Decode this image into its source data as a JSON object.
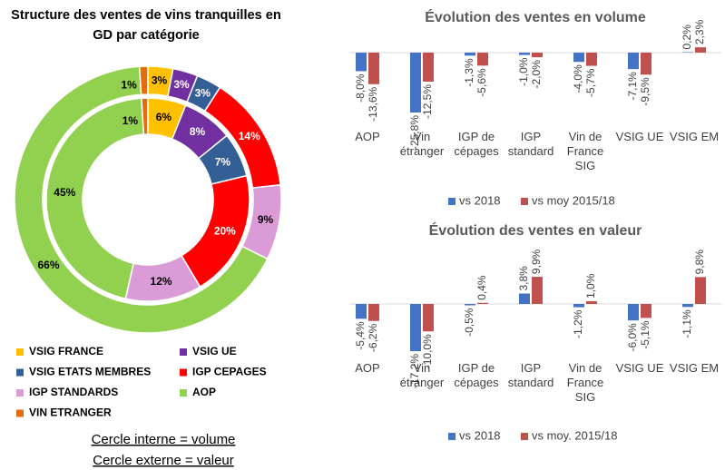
{
  "chart_data": [
    {
      "type": "donut",
      "title": "Structure des ventes de vins tranquilles en GD par catégorie",
      "categories": [
        "VSIG FRANCE",
        "VSIG UE",
        "VSIG ETATS MEMBRES",
        "IGP CEPAGES",
        "IGP STANDARDS",
        "AOP",
        "VIN ETRANGER"
      ],
      "colors": [
        "#ffc000",
        "#7030a0",
        "#335e96",
        "#ff0000",
        "#da9bd6",
        "#92d050",
        "#e46c0a"
      ],
      "rings": [
        {
          "values": [
            6,
            8,
            7,
            20,
            12,
            45,
            1
          ],
          "value_labels": [
            "6%",
            "8%",
            "7%",
            "20%",
            "12%",
            "45%",
            "1%"
          ]
        },
        {
          "values": [
            3,
            3,
            3,
            14,
            9,
            66,
            1
          ],
          "value_labels": [
            "3%",
            "3%",
            "3%",
            "14%",
            "9%",
            "66%",
            "1%"
          ]
        }
      ],
      "notes": [
        "Cercle interne = volume",
        "Cercle externe = valeur"
      ]
    },
    {
      "type": "bar",
      "title": "Évolution des ventes en volume",
      "categories": [
        "AOP",
        "Vin étranger",
        "IGP de cépages",
        "IGP standard",
        "Vin de France SIG",
        "VSIG UE",
        "VSIG EM"
      ],
      "series": [
        {
          "name": "vs 2018",
          "color": "#4472c4",
          "values": [
            -8.0,
            -25.8,
            -1.3,
            -1.0,
            -4.0,
            -7.1,
            0.2
          ],
          "value_labels": [
            "-8,0%",
            "-25,8%",
            "-1,3%",
            "-1,0%",
            "-4,0%",
            "-7,1%",
            "0,2%"
          ]
        },
        {
          "name": "vs moy 2015/18",
          "color": "#c0504d",
          "values": [
            -13.6,
            -12.5,
            -5.6,
            -2.0,
            -5.7,
            -9.5,
            2.3
          ],
          "value_labels": [
            "-13,6%",
            "-12,5%",
            "-5,6%",
            "-2,0%",
            "-5,7%",
            "-9,5%",
            "2,3%"
          ]
        }
      ]
    },
    {
      "type": "bar",
      "title": "Évolution des ventes en valeur",
      "categories": [
        "AOP",
        "Vin étranger",
        "IGP de cépages",
        "IGP standard",
        "Vin de France SIG",
        "VSIG UE",
        "VSIG EM"
      ],
      "series": [
        {
          "name": "vs 2018",
          "color": "#4472c4",
          "values": [
            -5.4,
            -17.2,
            -0.5,
            3.8,
            -1.2,
            -6.0,
            -1.1
          ],
          "value_labels": [
            "-5,4%",
            "-17,2%",
            "-0,5%",
            "3,8%",
            "-1,2%",
            "-6,0%",
            "-1,1%"
          ]
        },
        {
          "name": "vs moy. 2015/18",
          "color": "#c0504d",
          "values": [
            -6.2,
            -10.0,
            0.4,
            9.9,
            1.0,
            -5.1,
            9.8
          ],
          "value_labels": [
            "-6,2%",
            "-10,0%",
            "0,4%",
            "9,9%",
            "1,0%",
            "-5,1%",
            "9,8%"
          ]
        }
      ]
    }
  ]
}
